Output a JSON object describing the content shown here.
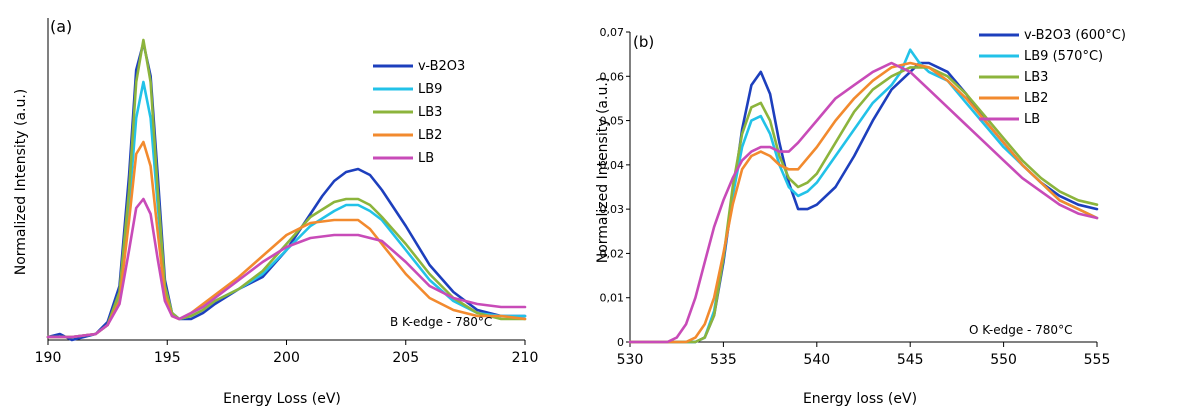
{
  "chart_data": [
    {
      "panel_label": "(a)",
      "type": "line",
      "xlabel": "Energy Loss (eV)",
      "ylabel": "Normalized Intensity (a.u.)",
      "xlim": [
        190,
        210
      ],
      "ylim": [
        0,
        1
      ],
      "xticks": [
        190,
        195,
        200,
        205,
        210
      ],
      "annotation": "B K-edge - 780°C",
      "grid": false,
      "legend_position": "top-right",
      "series": [
        {
          "name": "v-B2O3",
          "color": "#1d3fbd",
          "x": [
            190,
            190.5,
            191,
            191.5,
            192,
            192.5,
            193,
            193.4,
            193.7,
            194,
            194.3,
            194.6,
            194.9,
            195.2,
            195.5,
            196,
            196.5,
            197,
            198,
            199,
            200,
            201,
            201.5,
            202,
            202.5,
            203,
            203.5,
            204,
            205,
            206,
            207,
            208,
            209,
            210
          ],
          "y": [
            0.01,
            0.02,
            0.0,
            0.01,
            0.02,
            0.06,
            0.18,
            0.55,
            0.9,
            0.99,
            0.88,
            0.55,
            0.2,
            0.09,
            0.07,
            0.07,
            0.09,
            0.12,
            0.17,
            0.21,
            0.3,
            0.42,
            0.48,
            0.53,
            0.56,
            0.57,
            0.55,
            0.5,
            0.38,
            0.25,
            0.16,
            0.1,
            0.08,
            0.08
          ]
        },
        {
          "name": "LB9",
          "color": "#22c2e8",
          "x": [
            190,
            191,
            192,
            192.5,
            193,
            193.4,
            193.7,
            194,
            194.3,
            194.6,
            194.9,
            195.2,
            195.5,
            196,
            196.5,
            197,
            198,
            199,
            200,
            201,
            202,
            202.5,
            203,
            203.5,
            204,
            205,
            206,
            207,
            208,
            209,
            210
          ],
          "y": [
            0.01,
            0.01,
            0.02,
            0.05,
            0.15,
            0.45,
            0.74,
            0.86,
            0.74,
            0.45,
            0.17,
            0.09,
            0.07,
            0.08,
            0.1,
            0.13,
            0.17,
            0.22,
            0.3,
            0.38,
            0.43,
            0.45,
            0.45,
            0.43,
            0.4,
            0.3,
            0.2,
            0.13,
            0.09,
            0.08,
            0.08
          ]
        },
        {
          "name": "LB3",
          "color": "#8cb43c",
          "x": [
            190,
            191,
            192,
            192.5,
            193,
            193.4,
            193.7,
            194,
            194.3,
            194.6,
            194.9,
            195.2,
            195.5,
            196,
            196.5,
            197,
            198,
            199,
            200,
            201,
            202,
            202.5,
            203,
            203.5,
            204,
            205,
            206,
            207,
            208,
            209,
            210
          ],
          "y": [
            0.01,
            0.01,
            0.02,
            0.05,
            0.16,
            0.5,
            0.86,
            1.0,
            0.86,
            0.5,
            0.18,
            0.09,
            0.07,
            0.08,
            0.1,
            0.13,
            0.17,
            0.23,
            0.32,
            0.41,
            0.46,
            0.47,
            0.47,
            0.45,
            0.41,
            0.32,
            0.22,
            0.14,
            0.09,
            0.07,
            0.07
          ]
        },
        {
          "name": "LB2",
          "color": "#f28a2e",
          "x": [
            190,
            191,
            192,
            192.5,
            193,
            193.4,
            193.7,
            194,
            194.3,
            194.6,
            194.9,
            195.2,
            195.5,
            196,
            196.5,
            197,
            198,
            199,
            200,
            201,
            202,
            203,
            203.5,
            204,
            205,
            206,
            207,
            208,
            209,
            210
          ],
          "y": [
            0.01,
            0.01,
            0.02,
            0.05,
            0.13,
            0.4,
            0.62,
            0.66,
            0.58,
            0.36,
            0.15,
            0.08,
            0.07,
            0.09,
            0.12,
            0.15,
            0.21,
            0.28,
            0.35,
            0.39,
            0.4,
            0.4,
            0.37,
            0.32,
            0.22,
            0.14,
            0.1,
            0.08,
            0.08,
            0.07
          ]
        },
        {
          "name": "LB",
          "color": "#c84bb8",
          "x": [
            190,
            191,
            192,
            192.5,
            193,
            193.4,
            193.7,
            194,
            194.3,
            194.6,
            194.9,
            195.2,
            195.5,
            196,
            196.5,
            197,
            198,
            199,
            200,
            201,
            202,
            203,
            204,
            205,
            206,
            207,
            208,
            209,
            210
          ],
          "y": [
            0.01,
            0.01,
            0.02,
            0.05,
            0.12,
            0.3,
            0.44,
            0.47,
            0.42,
            0.27,
            0.13,
            0.08,
            0.07,
            0.09,
            0.11,
            0.14,
            0.2,
            0.26,
            0.31,
            0.34,
            0.35,
            0.35,
            0.33,
            0.26,
            0.18,
            0.14,
            0.12,
            0.11,
            0.11
          ]
        }
      ]
    },
    {
      "panel_label": "(b)",
      "type": "line",
      "xlabel": "Energy loss (eV)",
      "ylabel": "Normalized Intensity (a.u.)",
      "xlim": [
        530,
        555
      ],
      "ylim": [
        0,
        0.07
      ],
      "xticks": [
        530,
        535,
        540,
        545,
        550,
        555
      ],
      "yticks": [
        0,
        0.01,
        0.02,
        0.03,
        0.04,
        0.05,
        0.06,
        0.07
      ],
      "ytick_labels": [
        "0",
        "0,01",
        "0,02",
        "0,03",
        "0,04",
        "0,05",
        "0,06",
        "0,07"
      ],
      "annotation": "O K-edge - 780°C",
      "grid": false,
      "legend_position": "top-right",
      "series": [
        {
          "name": "v-B2O3 (600°C)",
          "color": "#1d3fbd",
          "x": [
            530,
            531,
            532,
            533,
            533.5,
            534,
            534.5,
            535,
            535.5,
            536,
            536.5,
            537,
            537.5,
            538,
            538.5,
            539,
            539.5,
            540,
            541,
            542,
            543,
            544,
            545,
            545.5,
            546,
            546.5,
            547,
            548,
            549,
            550,
            551,
            552,
            553,
            554,
            555
          ],
          "y": [
            0.0,
            0.0,
            0.0,
            0.0,
            0.0,
            0.001,
            0.006,
            0.018,
            0.033,
            0.048,
            0.058,
            0.061,
            0.056,
            0.045,
            0.036,
            0.03,
            0.03,
            0.031,
            0.035,
            0.042,
            0.05,
            0.057,
            0.061,
            0.063,
            0.063,
            0.062,
            0.061,
            0.056,
            0.05,
            0.045,
            0.04,
            0.036,
            0.033,
            0.031,
            0.03
          ]
        },
        {
          "name": "LB9 (570°C)",
          "color": "#22c2e8",
          "x": [
            530,
            531,
            532,
            533,
            533.5,
            534,
            534.5,
            535,
            535.5,
            536,
            536.5,
            537,
            537.5,
            538,
            538.5,
            539,
            539.5,
            540,
            541,
            542,
            543,
            544,
            544.5,
            545,
            545.5,
            546,
            547,
            548,
            549,
            550,
            551,
            552,
            553,
            554,
            555
          ],
          "y": [
            0.0,
            0.0,
            0.0,
            0.0,
            0.0,
            0.001,
            0.007,
            0.019,
            0.033,
            0.044,
            0.05,
            0.051,
            0.047,
            0.04,
            0.035,
            0.033,
            0.034,
            0.036,
            0.042,
            0.048,
            0.054,
            0.058,
            0.061,
            0.066,
            0.063,
            0.061,
            0.059,
            0.054,
            0.049,
            0.044,
            0.04,
            0.036,
            0.032,
            0.03,
            0.028
          ]
        },
        {
          "name": "LB3",
          "color": "#8cb43c",
          "x": [
            530,
            531,
            532,
            533,
            533.5,
            534,
            534.5,
            535,
            535.5,
            536,
            536.5,
            537,
            537.5,
            538,
            538.5,
            539,
            539.5,
            540,
            541,
            542,
            543,
            544,
            545,
            546,
            547,
            548,
            549,
            550,
            551,
            552,
            553,
            554,
            555
          ],
          "y": [
            0.0,
            0.0,
            0.0,
            0.0,
            0.0,
            0.001,
            0.006,
            0.019,
            0.035,
            0.047,
            0.053,
            0.054,
            0.05,
            0.042,
            0.037,
            0.035,
            0.036,
            0.038,
            0.045,
            0.052,
            0.057,
            0.06,
            0.062,
            0.062,
            0.06,
            0.056,
            0.051,
            0.046,
            0.041,
            0.037,
            0.034,
            0.032,
            0.031
          ]
        },
        {
          "name": "LB2",
          "color": "#f28a2e",
          "x": [
            530,
            531,
            532,
            533,
            533.5,
            534,
            534.5,
            535,
            535.5,
            536,
            536.5,
            537,
            537.5,
            538,
            538.5,
            539,
            540,
            541,
            542,
            543,
            544,
            545,
            546,
            547,
            548,
            549,
            550,
            551,
            552,
            553,
            554,
            555
          ],
          "y": [
            0.0,
            0.0,
            0.0,
            0.0,
            0.001,
            0.004,
            0.01,
            0.02,
            0.031,
            0.039,
            0.042,
            0.043,
            0.042,
            0.04,
            0.039,
            0.039,
            0.044,
            0.05,
            0.055,
            0.059,
            0.062,
            0.063,
            0.062,
            0.059,
            0.055,
            0.05,
            0.045,
            0.04,
            0.036,
            0.032,
            0.03,
            0.028
          ]
        },
        {
          "name": "LB",
          "color": "#c84bb8",
          "x": [
            530,
            531,
            532,
            532.5,
            533,
            533.5,
            534,
            534.5,
            535,
            535.5,
            536,
            536.5,
            537,
            537.5,
            538,
            538.5,
            539,
            540,
            541,
            542,
            543,
            544,
            545,
            546,
            547,
            548,
            549,
            550,
            551,
            552,
            553,
            554,
            555
          ],
          "y": [
            0.0,
            0.0,
            0.0,
            0.001,
            0.004,
            0.01,
            0.018,
            0.026,
            0.032,
            0.037,
            0.041,
            0.043,
            0.044,
            0.044,
            0.043,
            0.043,
            0.045,
            0.05,
            0.055,
            0.058,
            0.061,
            0.063,
            0.061,
            0.057,
            0.053,
            0.049,
            0.045,
            0.041,
            0.037,
            0.034,
            0.031,
            0.029,
            0.028
          ]
        }
      ]
    }
  ]
}
